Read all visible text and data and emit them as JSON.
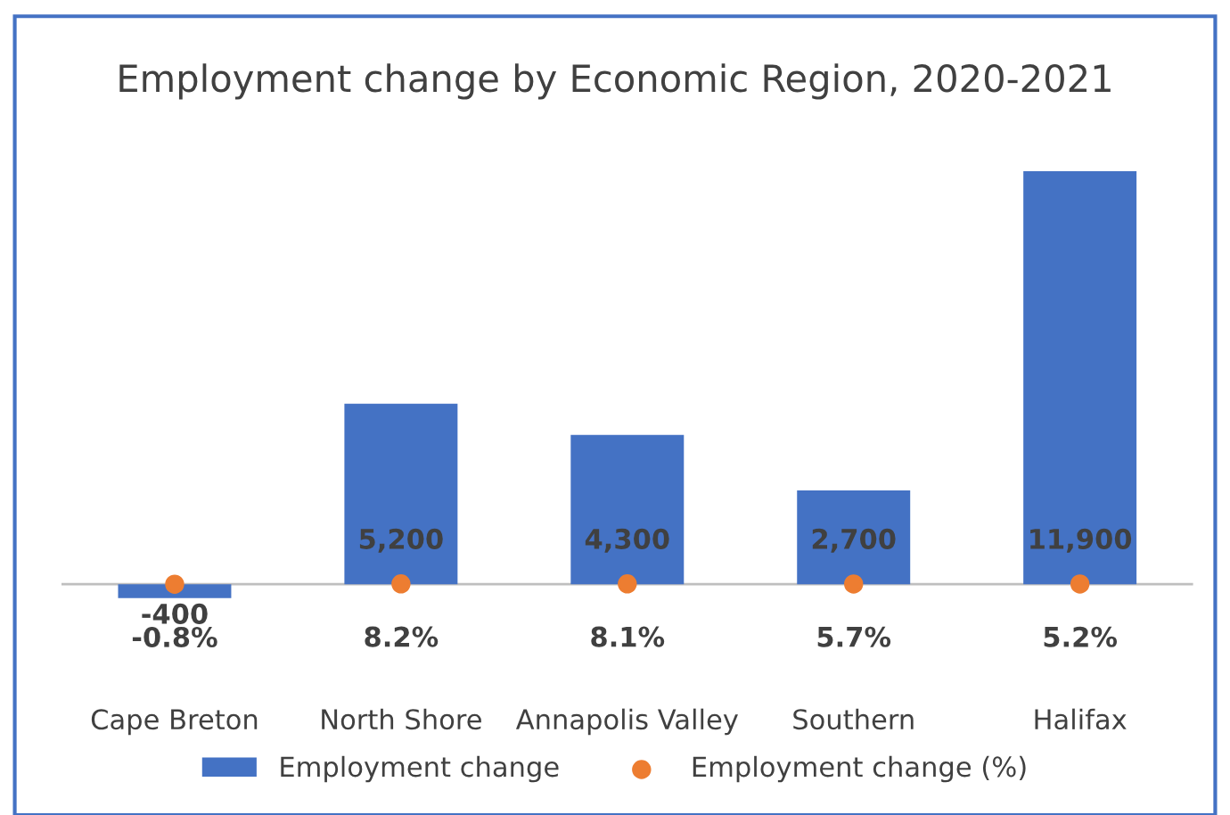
{
  "chart_data": {
    "type": "bar",
    "title": "Employment change by Economic Region, 2020-2021",
    "categories": [
      "Cape Breton",
      "North Shore",
      "Annapolis Valley",
      "Southern",
      "Halifax"
    ],
    "series": [
      {
        "name": "Employment change",
        "color": "#4472c4",
        "values": [
          -400,
          5200,
          4300,
          2700,
          11900
        ],
        "value_labels": [
          "-400",
          "5,200",
          "4,300",
          "2,700",
          "11,900"
        ]
      },
      {
        "name": "Employment change (%)",
        "type": "scatter",
        "color": "#ed7d31",
        "marker": "circle",
        "values": [
          -0.8,
          8.2,
          8.1,
          5.7,
          5.2
        ],
        "value_labels": [
          "-0.8%",
          "8.2%",
          "8.1%",
          "5.7%",
          "5.2%"
        ]
      }
    ],
    "tick_labels": "x",
    "grid": false,
    "legend": "bottom"
  }
}
